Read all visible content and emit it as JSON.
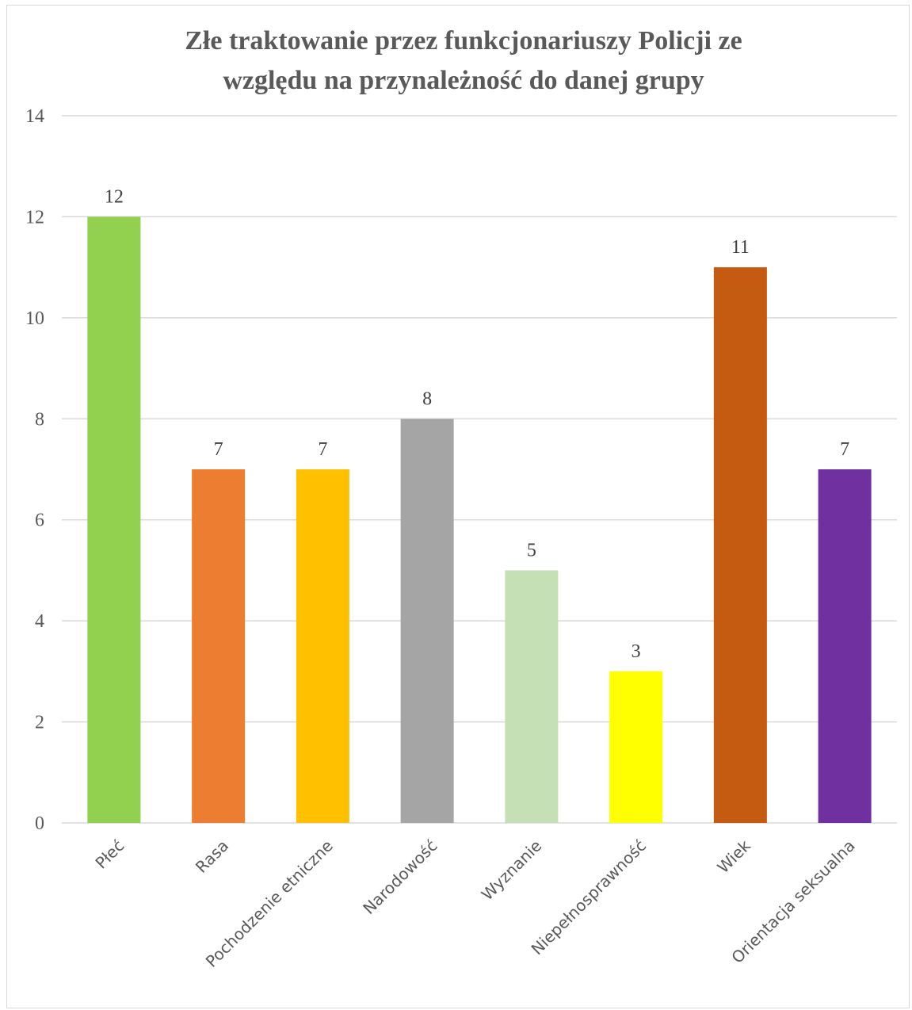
{
  "chart_data": {
    "type": "bar",
    "title_lines": [
      "Złe traktowanie przez funkcjonariuszy Policji ze",
      "względu na przynależność do danej grupy"
    ],
    "categories": [
      "Płeć",
      "Rasa",
      "Pochodzenie etniczne",
      "Narodowość",
      "Wyznanie",
      "Niepełnosprawność",
      "Wiek",
      "Orientacja seksualna"
    ],
    "values": [
      12,
      7,
      7,
      8,
      5,
      3,
      11,
      7
    ],
    "colors": [
      "#92d050",
      "#ed7d31",
      "#ffc000",
      "#a5a5a5",
      "#c5e0b4",
      "#ffff00",
      "#c55a11",
      "#7030a0"
    ],
    "ylim": [
      0,
      14
    ],
    "yticks": [
      0,
      2,
      4,
      6,
      8,
      10,
      12,
      14
    ],
    "grid": true,
    "legend": "none",
    "data_labels": true
  }
}
